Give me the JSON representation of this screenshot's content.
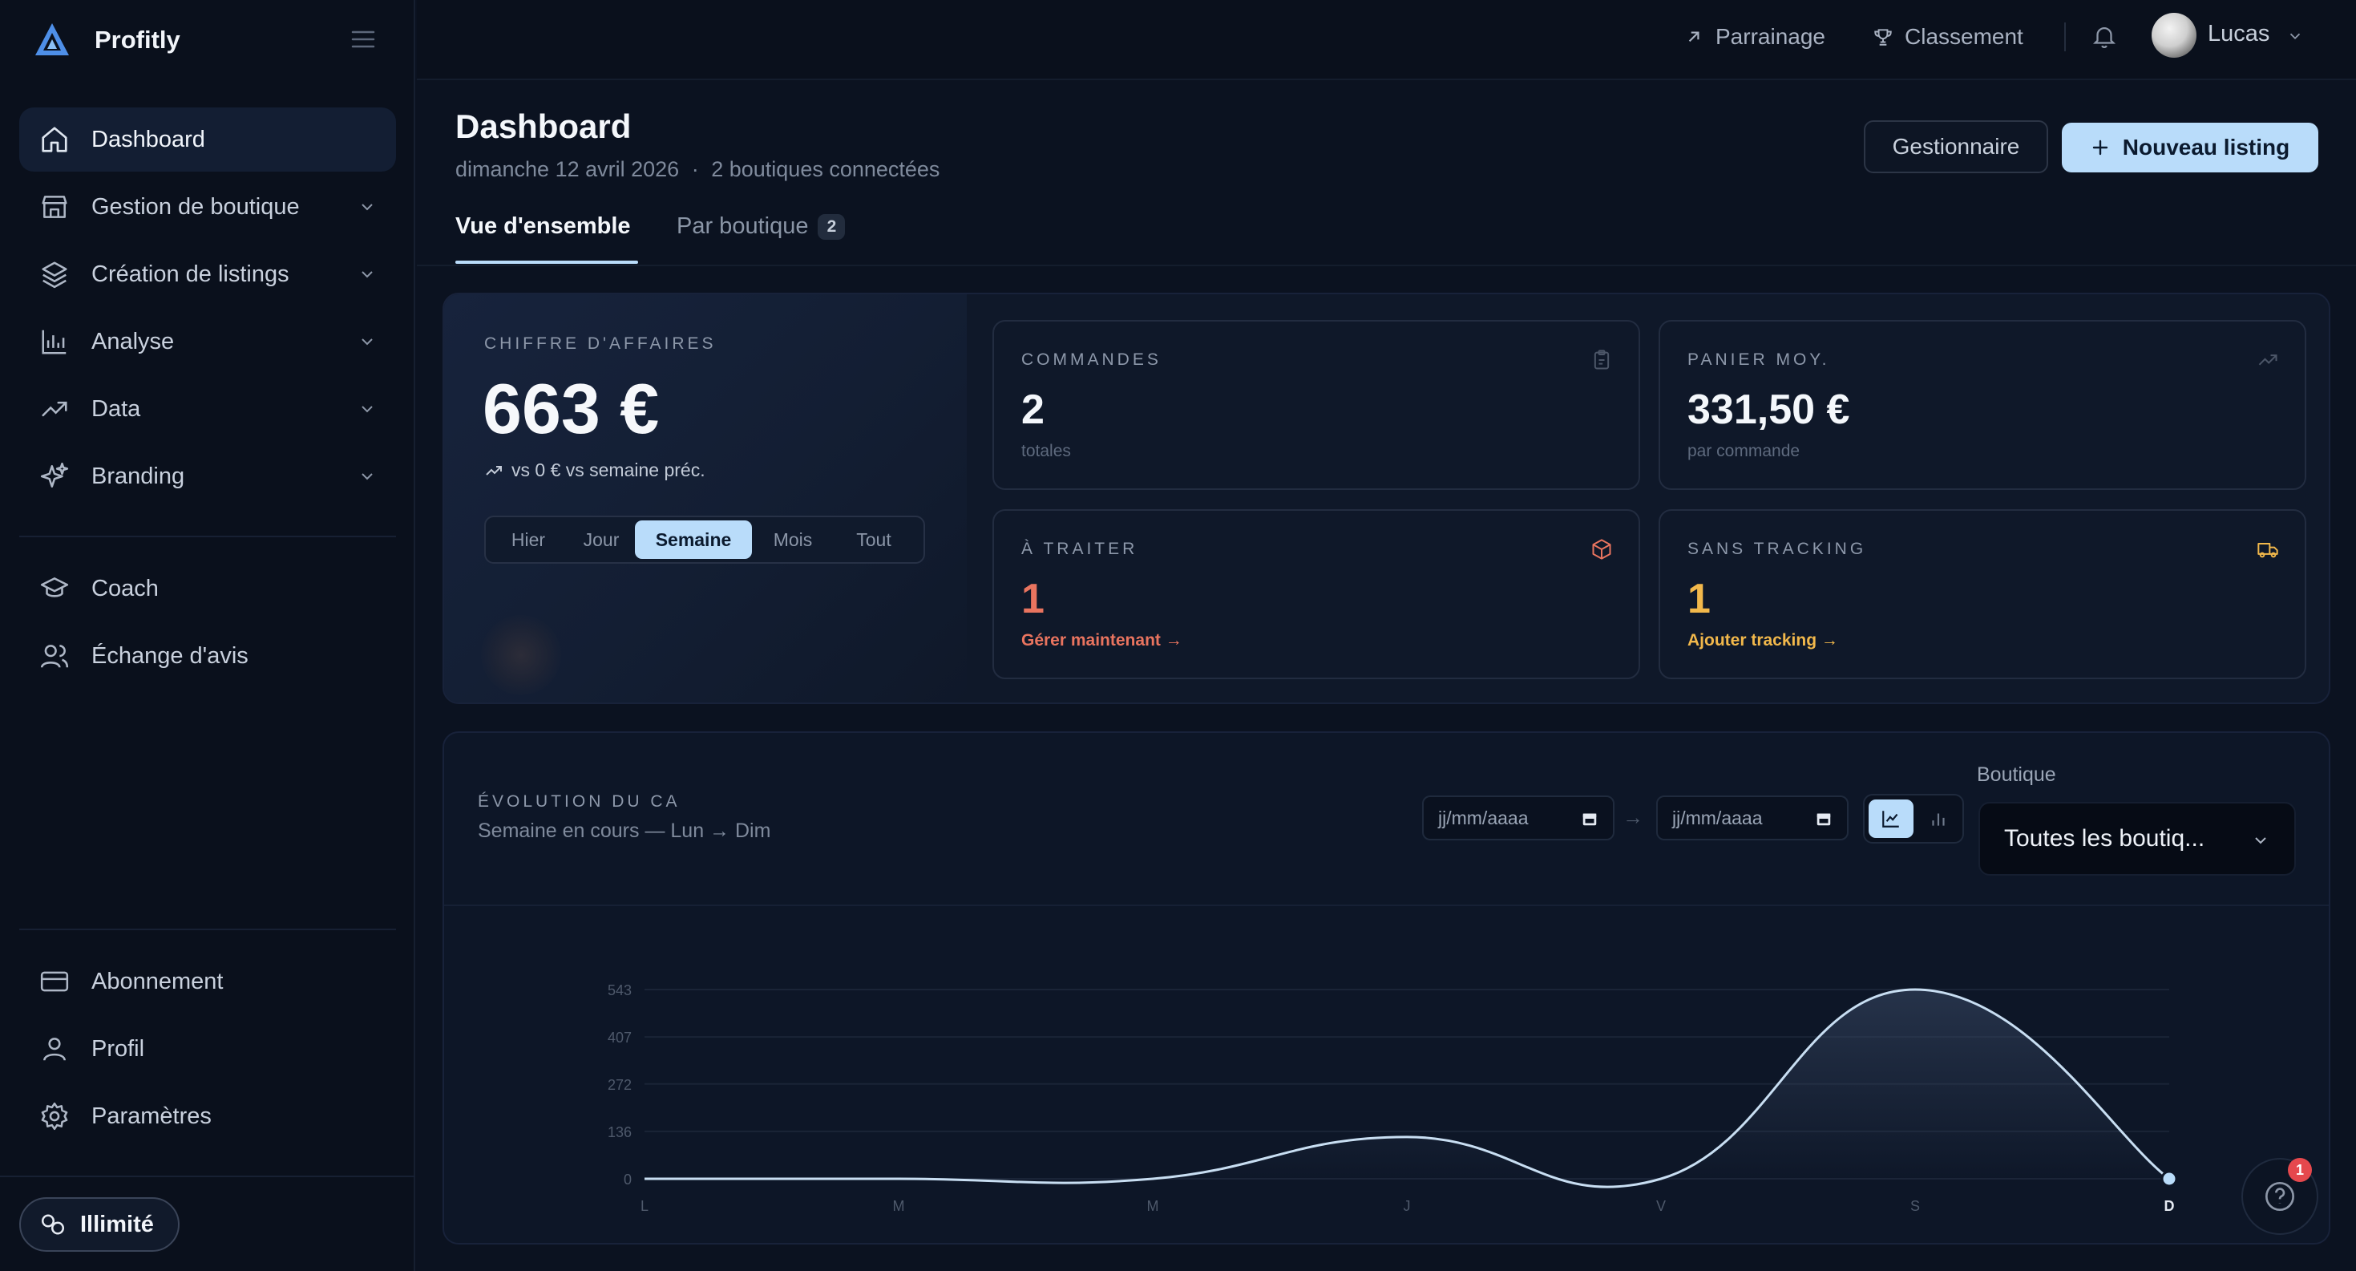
{
  "brand": {
    "name": "Profitly"
  },
  "sidebar": {
    "items": [
      {
        "label": "Dashboard",
        "icon": "home-icon",
        "active": true,
        "expandable": false
      },
      {
        "label": "Gestion de boutique",
        "icon": "store-icon",
        "expandable": true
      },
      {
        "label": "Création de listings",
        "icon": "layers-icon",
        "expandable": true
      },
      {
        "label": "Analyse",
        "icon": "bar-chart-icon",
        "expandable": true
      },
      {
        "label": "Data",
        "icon": "trending-up-icon",
        "expandable": true
      },
      {
        "label": "Branding",
        "icon": "sparkles-icon",
        "expandable": true
      }
    ],
    "secondary": [
      {
        "label": "Coach",
        "icon": "graduation-cap-icon"
      },
      {
        "label": "Échange d'avis",
        "icon": "users-icon"
      }
    ],
    "bottom": [
      {
        "label": "Abonnement",
        "icon": "credit-card-icon"
      },
      {
        "label": "Profil",
        "icon": "user-icon"
      },
      {
        "label": "Paramètres",
        "icon": "settings-icon"
      }
    ],
    "plan": "Illimité"
  },
  "topbar": {
    "referral": "Parrainage",
    "ranking": "Classement",
    "user": "Lucas"
  },
  "header": {
    "title": "Dashboard",
    "date": "dimanche 12 avril 2026",
    "separator": "·",
    "shops": "2 boutiques connectées",
    "manager_button": "Gestionnaire",
    "new_listing_button": "Nouveau listing",
    "tabs": [
      {
        "label": "Vue d'ensemble",
        "active": true
      },
      {
        "label": "Par boutique",
        "count": "2",
        "active": false
      }
    ]
  },
  "kpis": {
    "revenue": {
      "label": "CHIFFRE D'AFFAIRES",
      "value": "663 €",
      "compare": "vs 0 € vs semaine préc.",
      "periods": [
        "Hier",
        "Jour",
        "Semaine",
        "Mois",
        "Tout"
      ],
      "active_period": "Semaine"
    },
    "orders": {
      "label": "COMMANDES",
      "value": "2",
      "sub": "totales",
      "icon": "clipboard-icon"
    },
    "basket": {
      "label": "PANIER MOY.",
      "value": "331,50 €",
      "sub": "par commande",
      "icon": "trending-up-icon"
    },
    "to_process": {
      "label": "À TRAITER",
      "value": "1",
      "link": "Gérer maintenant →",
      "icon": "package-icon",
      "color": "#e9745f"
    },
    "no_tracking": {
      "label": "SANS TRACKING",
      "value": "1",
      "link": "Ajouter tracking →",
      "icon": "truck-icon",
      "color": "#f2b84b"
    }
  },
  "chart_panel": {
    "title": "ÉVOLUTION DU CA",
    "subtitle": "Semaine en cours — Lun → Dim",
    "date_from_placeholder": "jj/mm/aaaa",
    "date_to_placeholder": "jj/mm/aaaa",
    "date_arrow": "→",
    "shop_label": "Boutique",
    "shop_value": "Toutes les boutiq..."
  },
  "chart_data": {
    "type": "area",
    "categories": [
      "L",
      "M",
      "M",
      "J",
      "V",
      "S",
      "D"
    ],
    "values": [
      0,
      0,
      0,
      120,
      0,
      543,
      0
    ],
    "y_ticks": [
      0,
      136,
      272,
      407,
      543
    ],
    "ylim": [
      0,
      543
    ],
    "grid": true,
    "highlight_index": 6,
    "line_color": "#c8def2"
  },
  "help": {
    "badge": "1"
  }
}
